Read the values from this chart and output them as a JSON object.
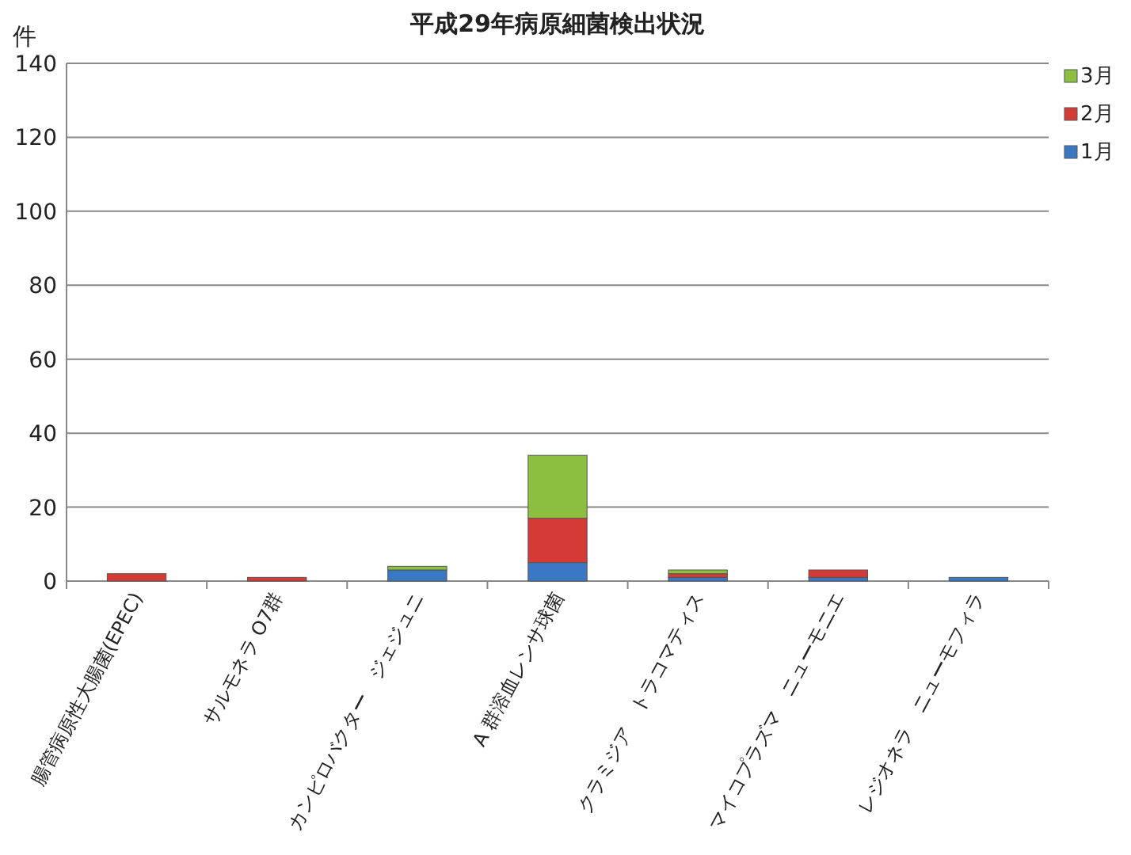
{
  "chart_data": {
    "type": "bar",
    "title": "平成29年病原細菌検出状況",
    "ylabel": "件",
    "stacked": true,
    "grid": "y",
    "legend": "top right",
    "categories": [
      "腸管病原性大腸菌(EPEC)",
      "サルモネラ O7群",
      "カンピロバクター　ジェジュニ",
      "A 群溶血レンサ球菌",
      "クラミジア　トラコマティス",
      "マイコプラズマ　ニューモニエ",
      "レジオネラ　ニューモフィラ"
    ],
    "series": [
      {
        "name": "1月",
        "color": "#3b78c4",
        "values": [
          0,
          0,
          3,
          5,
          1,
          1,
          1
        ]
      },
      {
        "name": "2月",
        "color": "#d63a36",
        "values": [
          2,
          1,
          0,
          12,
          1,
          2,
          0
        ]
      },
      {
        "name": "3月",
        "color": "#8cbf3f",
        "values": [
          0,
          0,
          1,
          17,
          1,
          0,
          0
        ]
      }
    ],
    "ylim": [
      0,
      140
    ],
    "yticks": [
      0,
      20,
      40,
      60,
      80,
      100,
      120,
      140
    ]
  }
}
